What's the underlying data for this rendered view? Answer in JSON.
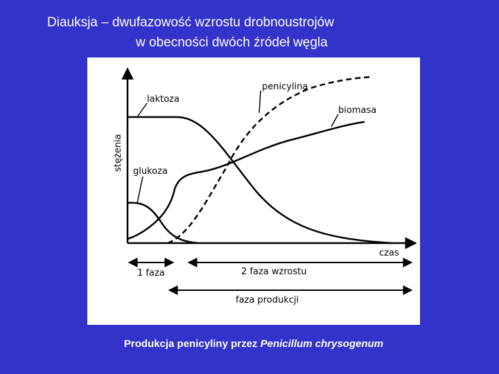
{
  "title": {
    "line1": "Diauksja – dwufazowość wzrostu drobnoustrojów",
    "line2": "w obecności dwóch źródeł węgla"
  },
  "diagram": {
    "y_axis_label": "stężenia",
    "x_axis_label": "czas",
    "curves": {
      "laktoza": "laktoza",
      "glukoza": "glukoza",
      "penicylina": "penicylina",
      "biomasa": "biomasa"
    },
    "phases": {
      "phase1": "1 faza",
      "phase2": "2 faza wzrostu",
      "production": "faza produkcji"
    }
  },
  "caption": {
    "text": "Produkcja penicyliny przez ",
    "italic": "Penicillum chrysogenum"
  }
}
